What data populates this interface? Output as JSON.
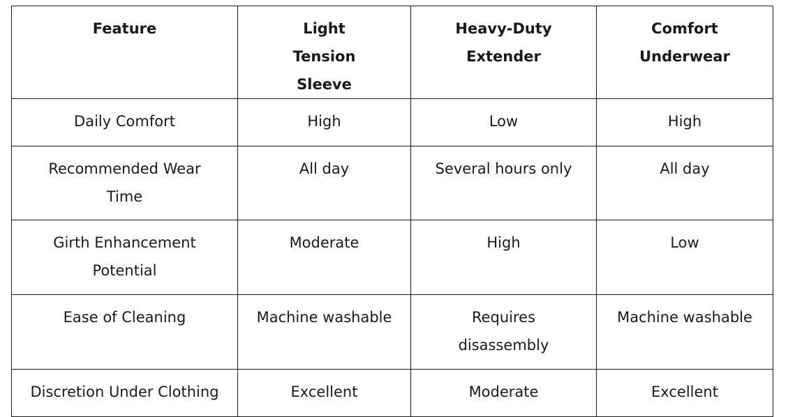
{
  "table": {
    "headers": [
      "Feature",
      "Light Tension Sleeve",
      "Heavy-Duty Extender",
      "Comfort Underwear"
    ],
    "rows": [
      [
        "Daily Comfort",
        "High",
        "Low",
        "High"
      ],
      [
        "Recommended Wear Time",
        "All day",
        "Several hours only",
        "All day"
      ],
      [
        "Girth Enhancement Potential",
        "Moderate",
        "High",
        "Low"
      ],
      [
        "Ease of Cleaning",
        "Machine washable",
        "Requires disassembly",
        "Machine washable"
      ],
      [
        "Discretion Under Clothing",
        "Excellent",
        "Moderate",
        "Excellent"
      ]
    ]
  }
}
